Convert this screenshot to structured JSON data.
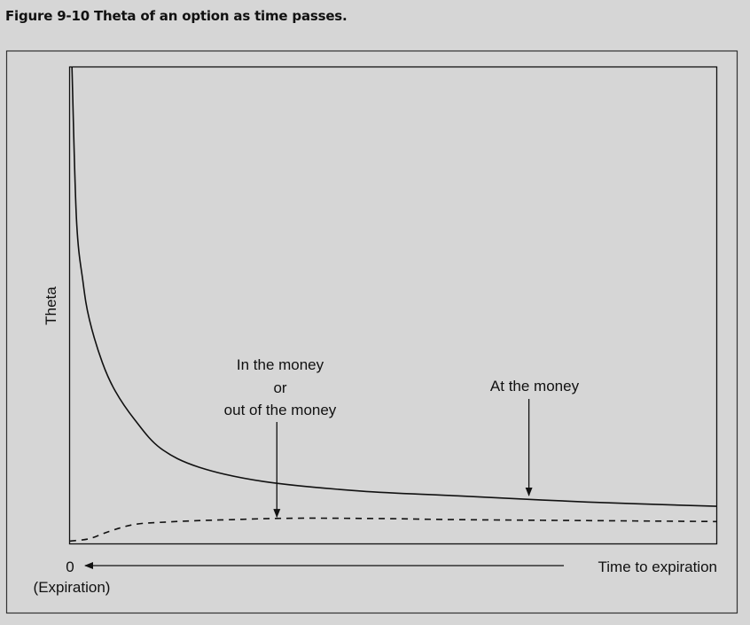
{
  "figure": {
    "title": "Figure 9-10  Theta of an option as time passes."
  },
  "chart_data": {
    "type": "line",
    "ylabel": "Theta",
    "x_origin_label": "0",
    "x_origin_sublabel": "(Expiration)",
    "xlabel": "Time to expiration",
    "x_direction_note": "arrow points toward 0 (Expiration)",
    "xlim": [
      0,
      1
    ],
    "ylim": [
      0,
      1
    ],
    "ticks": "none",
    "grid": false,
    "legend": "none",
    "series": [
      {
        "key": "atm",
        "line_style": "solid",
        "color": "#111111",
        "x": [
          0.003,
          0.01,
          0.02,
          0.03,
          0.05,
          0.07,
          0.1,
          0.14,
          0.2,
          0.3,
          0.45,
          0.6,
          0.8,
          1.0
        ],
        "y": [
          1.0,
          0.68,
          0.55,
          0.47,
          0.38,
          0.32,
          0.26,
          0.2,
          0.16,
          0.13,
          0.11,
          0.1,
          0.087,
          0.078
        ]
      },
      {
        "key": "itm_otm",
        "line_style": "dashed",
        "color": "#111111",
        "x": [
          0.0,
          0.03,
          0.06,
          0.1,
          0.15,
          0.2,
          0.25,
          0.3,
          0.35,
          0.4,
          0.5,
          0.6,
          0.8,
          1.0
        ],
        "y": [
          0.005,
          0.01,
          0.025,
          0.04,
          0.045,
          0.048,
          0.05,
          0.052,
          0.053,
          0.053,
          0.052,
          0.05,
          0.048,
          0.046
        ]
      }
    ],
    "annotations": [
      {
        "key": "itm_otm_label",
        "lines": [
          "In the money",
          "or",
          "out of the money"
        ],
        "points_to": {
          "x": 0.32,
          "y": 0.052
        }
      },
      {
        "key": "atm_label",
        "lines": [
          "At the money"
        ],
        "points_to": {
          "x": 0.71,
          "y": 0.097
        }
      }
    ]
  }
}
